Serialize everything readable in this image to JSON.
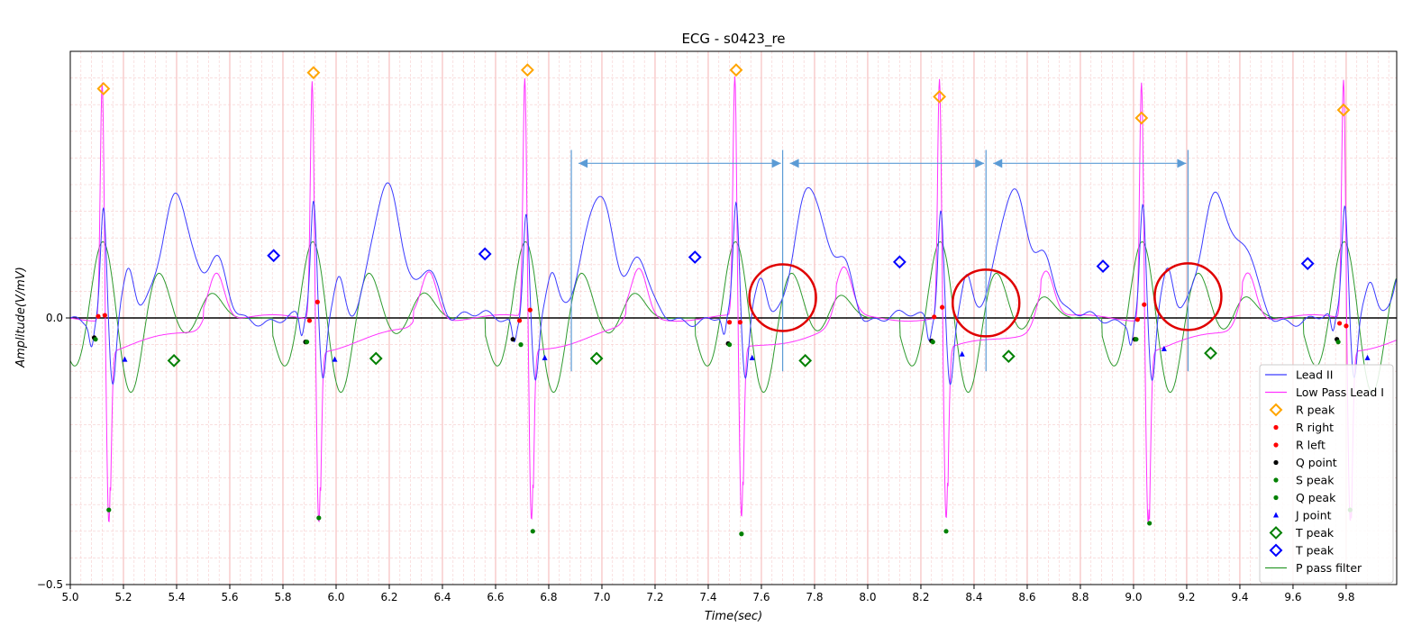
{
  "chart_data": {
    "type": "line",
    "title": "ECG - s0423_re",
    "xlabel": "Time(sec)",
    "ylabel": "Amplitude(V/mV)",
    "xlim": [
      5.0,
      9.99
    ],
    "ylim": [
      -0.5,
      0.5
    ],
    "x_ticks": [
      5.0,
      5.2,
      5.4,
      5.6,
      5.8,
      6.0,
      6.2,
      6.4,
      6.6,
      6.8,
      7.0,
      7.2,
      7.4,
      7.6,
      7.8,
      8.0,
      8.2,
      8.4,
      8.6,
      8.8,
      9.0,
      9.2,
      9.4,
      9.6,
      9.8
    ],
    "x_tick_labels": [
      "5.0",
      "5.2",
      "5.4",
      "5.6",
      "5.8",
      "6.0",
      "6.2",
      "6.4",
      "6.6",
      "6.8",
      "7.0",
      "7.2",
      "7.4",
      "7.6",
      "7.8",
      "8.0",
      "8.2",
      "8.4",
      "8.6",
      "8.8",
      "9.0",
      "9.2",
      "9.4",
      "9.6",
      "9.8"
    ],
    "y_ticks": [
      -0.5,
      0.0
    ],
    "y_tick_labels": [
      "−0.5",
      "0.0"
    ],
    "grid": true,
    "baseline": 0.0,
    "legend_position": "bottom-right",
    "beat_times": [
      5.12,
      5.91,
      6.71,
      7.5,
      8.27,
      9.03,
      9.79
    ],
    "series": [
      {
        "name": "Lead II",
        "color": "#3b3bff"
      },
      {
        "name": "Low Pass Lead I",
        "color": "#ff33ff"
      },
      {
        "name": "R peak",
        "color": "#ffa500",
        "marker": "diamond-open",
        "x": [
          5.125,
          5.915,
          6.72,
          7.505,
          8.27,
          9.03,
          9.79
        ],
        "y": [
          0.43,
          0.46,
          0.465,
          0.465,
          0.415,
          0.375,
          0.39
        ]
      },
      {
        "name": "R right",
        "color": "#ff0000",
        "marker": "dot",
        "x": [
          5.13,
          5.93,
          6.73,
          7.52,
          8.28,
          9.04,
          9.8
        ],
        "y": [
          0.005,
          0.03,
          0.015,
          -0.008,
          0.02,
          0.025,
          -0.015
        ]
      },
      {
        "name": "R left",
        "color": "#ff0000",
        "marker": "dot",
        "x": [
          5.105,
          5.9,
          6.69,
          7.48,
          8.25,
          9.015,
          9.775
        ],
        "y": [
          0.003,
          -0.005,
          -0.005,
          -0.008,
          0.002,
          -0.003,
          -0.01
        ]
      },
      {
        "name": "Q point",
        "color": "#000000",
        "marker": "dot",
        "x": [
          5.09,
          5.885,
          6.665,
          7.475,
          8.24,
          9.005,
          9.765
        ],
        "y": [
          -0.037,
          -0.045,
          -0.04,
          -0.048,
          -0.043,
          -0.04,
          -0.04
        ]
      },
      {
        "name": "S peak",
        "color": "#008000",
        "marker": "dot",
        "x": [
          5.145,
          5.935,
          6.74,
          7.525,
          8.295,
          9.06,
          9.815
        ],
        "y": [
          -0.36,
          -0.375,
          -0.4,
          -0.405,
          -0.4,
          -0.385,
          -0.36
        ]
      },
      {
        "name": "Q peak",
        "color": "#008000",
        "marker": "dot",
        "x": [
          5.095,
          5.89,
          6.695,
          7.48,
          8.245,
          9.01,
          9.77
        ],
        "y": [
          -0.04,
          -0.045,
          -0.05,
          -0.05,
          -0.045,
          -0.04,
          -0.045
        ]
      },
      {
        "name": "J point",
        "color": "#0000ff",
        "marker": "triangle",
        "x": [
          5.205,
          5.995,
          6.785,
          7.565,
          8.355,
          9.115,
          9.88
        ],
        "y": [
          -0.078,
          -0.078,
          -0.075,
          -0.075,
          -0.068,
          -0.058,
          -0.075
        ]
      },
      {
        "name": "T peak",
        "color": "#008000",
        "marker": "diamond-open",
        "x": [
          5.39,
          6.15,
          6.98,
          7.765,
          8.53,
          9.29
        ],
        "y": [
          -0.08,
          -0.076,
          -0.076,
          -0.08,
          -0.072,
          -0.066
        ]
      },
      {
        "name": "T peak",
        "color": "#0000ff",
        "marker": "diamond-open",
        "x": [
          5.765,
          6.56,
          7.35,
          8.12,
          8.885,
          9.655
        ],
        "y": [
          0.117,
          0.12,
          0.114,
          0.105,
          0.097,
          0.102
        ]
      },
      {
        "name": "P pass filter",
        "color": "#2e9a2e"
      }
    ],
    "annotations": {
      "interval_lines_x": [
        6.885,
        7.68,
        8.445,
        9.205
      ],
      "interval_arrows": [
        [
          6.885,
          7.68
        ],
        [
          7.68,
          8.445
        ],
        [
          8.445,
          9.205
        ]
      ],
      "arrow_y": 0.29,
      "circles": [
        {
          "x": 7.68,
          "y": 0.038
        },
        {
          "x": 8.445,
          "y": 0.028
        },
        {
          "x": 9.205,
          "y": 0.04
        }
      ]
    }
  },
  "colors": {
    "grid_major": "#f2a0a0",
    "grid_minor": "#f6cccc",
    "baseline": "#000000",
    "annotation_line": "#5b9bd5",
    "circle": "#e00000"
  }
}
